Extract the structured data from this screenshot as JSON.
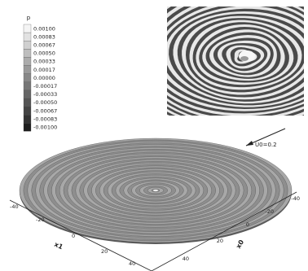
{
  "chart_data": [
    {
      "type": "heatmap",
      "description_type": "surface",
      "legend": {
        "variable": "p",
        "levels": [
          "0.00100",
          "0.00083",
          "0.00067",
          "0.00050",
          "0.00033",
          "0.00017",
          "0.00000",
          "-0.00017",
          "-0.00033",
          "-0.00050",
          "-0.00067",
          "-0.00083",
          "-0.00100"
        ],
        "colors": [
          "#f4f4f4",
          "#e2e2e2",
          "#d0d0d0",
          "#bebebe",
          "#acacac",
          "#9a9a9a",
          "#888888",
          "#777777",
          "#666666",
          "#555555",
          "#444444",
          "#333333",
          "#1e1e1e"
        ],
        "range": [
          -0.001,
          0.001
        ]
      },
      "xlabel": "x1",
      "ylabel": "x0",
      "x_ticks": [
        "-40",
        "-20",
        "0",
        "20",
        "40"
      ],
      "y_ticks": [
        "-40",
        "-20",
        "0",
        "20",
        "40"
      ],
      "annotation": "U0=0.2",
      "x_range": [
        -40,
        40
      ],
      "y_range": [
        -40,
        40
      ]
    },
    {
      "type": "heatmap",
      "description_type": "surface",
      "inset": true,
      "variable": "p"
    }
  ]
}
